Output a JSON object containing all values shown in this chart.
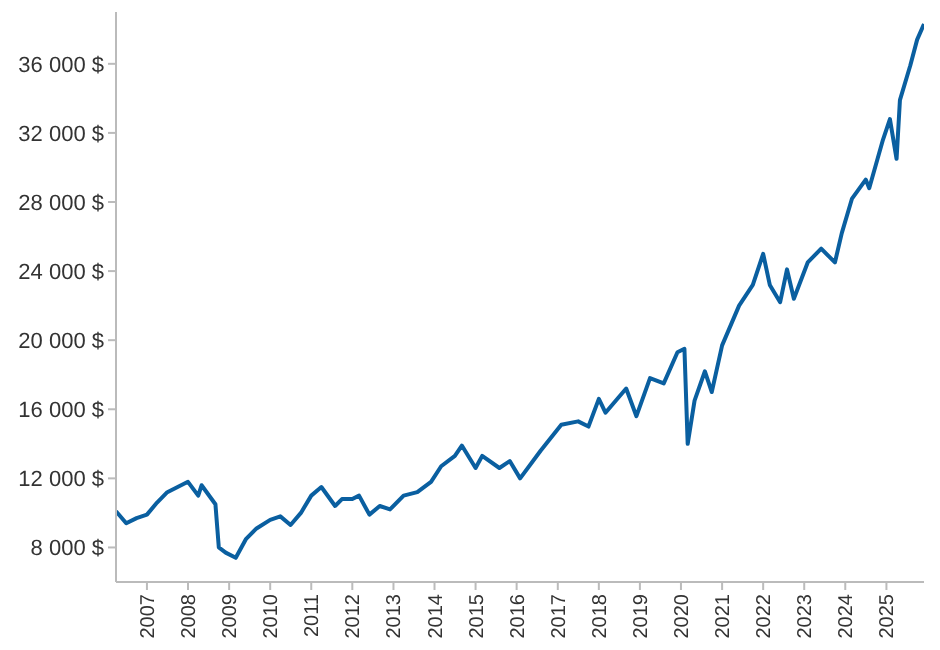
{
  "chart_data": {
    "type": "line",
    "x": [
      "2006-04",
      "2006-07",
      "2006-10",
      "2007-01",
      "2007-04",
      "2007-07",
      "2007-10",
      "2008-01",
      "2008-04",
      "2008-05",
      "2008-09",
      "2008-10",
      "2008-12",
      "2009-03",
      "2009-06",
      "2009-09",
      "2010-01",
      "2010-04",
      "2010-07",
      "2010-10",
      "2011-01",
      "2011-04",
      "2011-08",
      "2011-10",
      "2012-01",
      "2012-03",
      "2012-06",
      "2012-09",
      "2012-12",
      "2013-04",
      "2013-08",
      "2013-12",
      "2014-03",
      "2014-07",
      "2014-09",
      "2015-01",
      "2015-03",
      "2015-08",
      "2015-11",
      "2016-02",
      "2016-08",
      "2017-02",
      "2017-07",
      "2017-10",
      "2018-01",
      "2018-03",
      "2018-09",
      "2018-12",
      "2019-04",
      "2019-08",
      "2019-12",
      "2020-02",
      "2020-03",
      "2020-05",
      "2020-08",
      "2020-10",
      "2021-01",
      "2021-06",
      "2021-10",
      "2022-01",
      "2022-03",
      "2022-06",
      "2022-08",
      "2022-10",
      "2023-02",
      "2023-06",
      "2023-10",
      "2023-12",
      "2024-03",
      "2024-07",
      "2024-08",
      "2024-12",
      "2025-02",
      "2025-04",
      "2025-05",
      "2025-08",
      "2025-10",
      "2025-12"
    ],
    "series": [
      {
        "color": "#0a5fa0",
        "values": [
          10100,
          9400,
          9700,
          9900,
          10600,
          11200,
          11500,
          11800,
          11000,
          11600,
          10500,
          8000,
          7700,
          7400,
          8500,
          9100,
          9600,
          9800,
          9300,
          10000,
          11000,
          11500,
          10400,
          10800,
          10800,
          11000,
          9900,
          10400,
          10200,
          11000,
          11200,
          11800,
          12700,
          13300,
          13900,
          12600,
          13300,
          12600,
          13000,
          12000,
          13600,
          15100,
          15300,
          15000,
          16600,
          15800,
          17200,
          15600,
          17800,
          17500,
          19300,
          19500,
          14000,
          16500,
          18200,
          17000,
          19700,
          22000,
          23200,
          25000,
          23200,
          22200,
          24100,
          22400,
          24500,
          25300,
          24500,
          26200,
          28200,
          29300,
          28800,
          31600,
          32800,
          30500,
          33900,
          35900,
          37400,
          38300
        ]
      }
    ],
    "xlim": [
      "2006-04",
      "2025-12"
    ],
    "xticks": [
      "2007",
      "2008",
      "2009",
      "2010",
      "2011",
      "2012",
      "2013",
      "2014",
      "2015",
      "2016",
      "2017",
      "2018",
      "2019",
      "2020",
      "2021",
      "2022",
      "2023",
      "2024",
      "2025"
    ],
    "ylim": [
      6000,
      39000
    ],
    "yticks": [
      {
        "value": 8000,
        "label": "8 000 $"
      },
      {
        "value": 12000,
        "label": "12 000 $"
      },
      {
        "value": 16000,
        "label": "16 000 $"
      },
      {
        "value": 20000,
        "label": "20 000 $"
      },
      {
        "value": 24000,
        "label": "24 000 $"
      },
      {
        "value": 28000,
        "label": "28 000 $"
      },
      {
        "value": 32000,
        "label": "32 000 $"
      },
      {
        "value": 36000,
        "label": "36 000 $"
      }
    ],
    "grid": false,
    "legend": false,
    "marker": "none",
    "line_style": "solid"
  }
}
